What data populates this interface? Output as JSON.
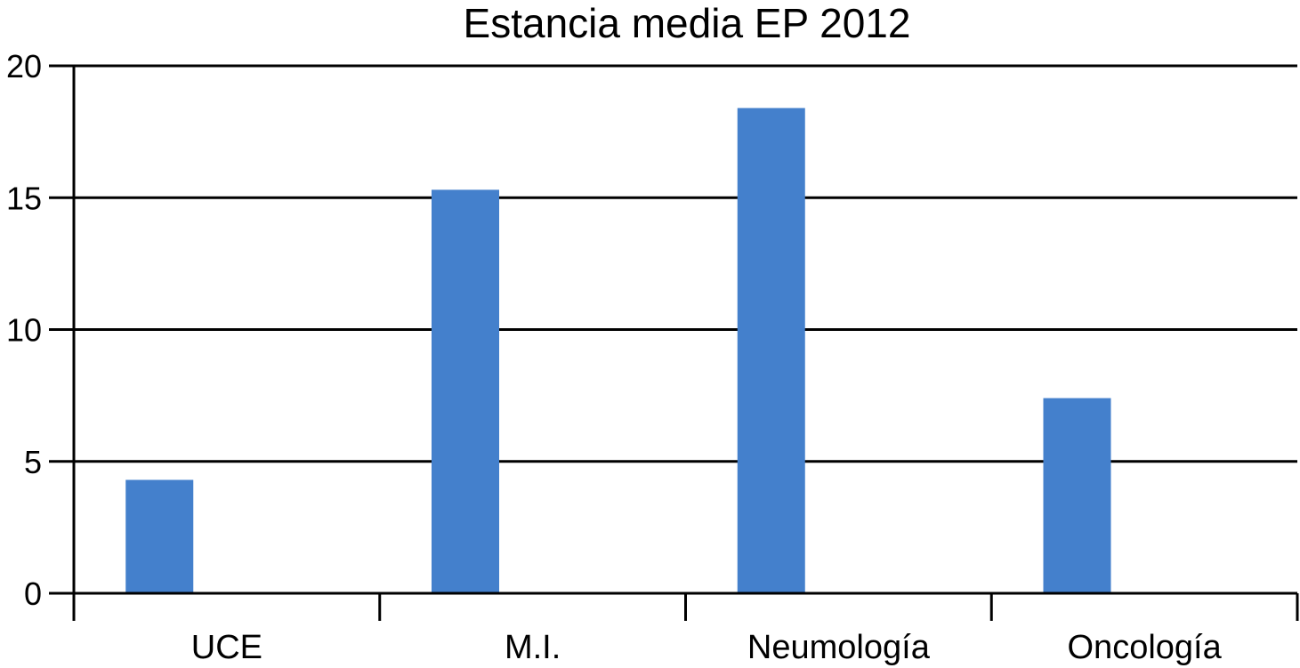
{
  "chart_data": {
    "type": "bar",
    "title": "Estancia media EP 2012",
    "xlabel": "",
    "ylabel": "",
    "categories": [
      "UCE",
      "M.I.",
      "Neumología",
      "Oncología"
    ],
    "values": [
      4.3,
      15.3,
      18.4,
      7.4
    ],
    "ylim": [
      0,
      20
    ],
    "yticks": [
      0,
      5,
      10,
      15,
      20
    ],
    "grid": true,
    "legend": "none",
    "colors": {
      "bar": "#4480CC",
      "axis": "#000000",
      "grid": "#000000"
    }
  }
}
